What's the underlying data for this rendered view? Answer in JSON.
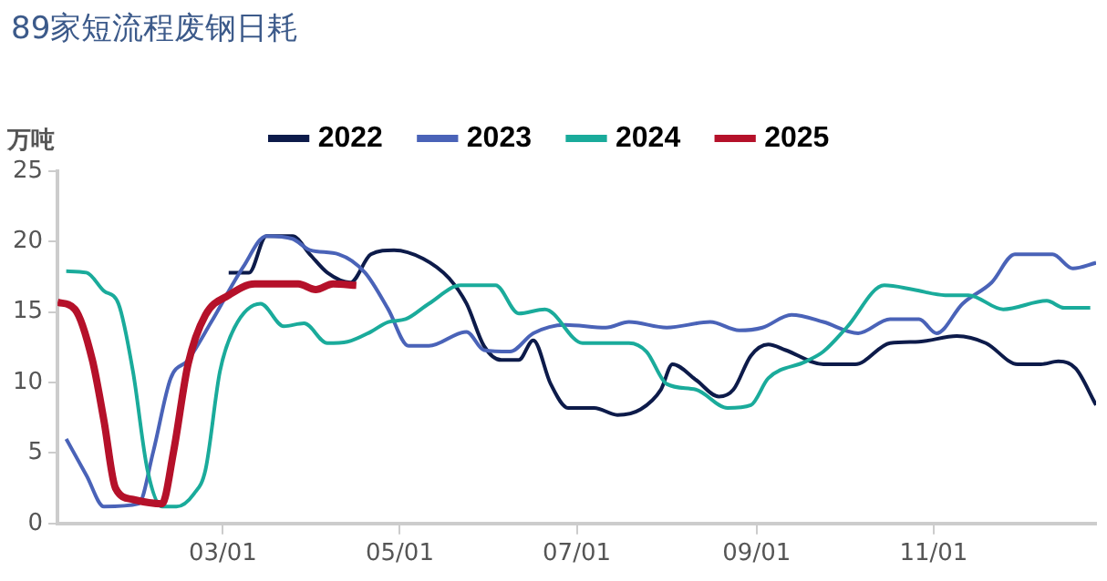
{
  "chart_data": {
    "type": "line",
    "title": "89家短流程废钢日耗",
    "ylabel": "万吨",
    "xlim": [
      "--01-03",
      "--12-27"
    ],
    "xticks": [
      {
        "value": "--03-01",
        "label": "03/01"
      },
      {
        "value": "--05-01",
        "label": "05/01"
      },
      {
        "value": "--07-01",
        "label": "07/01"
      },
      {
        "value": "--09-01",
        "label": "09/01"
      },
      {
        "value": "--11-01",
        "label": "11/01"
      }
    ],
    "ylim": [
      0,
      25
    ],
    "yticks": [
      0,
      5,
      10,
      15,
      20,
      25
    ],
    "grid": false,
    "legend": "top",
    "marker": "none",
    "series": [
      {
        "name": "2022",
        "color": "#0d1b4a",
        "x": [
          "--03-03",
          "--03-10",
          "--03-16",
          "--03-25",
          "--03-31",
          "--04-06",
          "--04-14",
          "--04-21",
          "--04-29",
          "--05-09",
          "--05-18",
          "--05-24",
          "--05-30",
          "--06-05",
          "--06-11",
          "--06-16",
          "--06-22",
          "--06-28",
          "--07-07",
          "--07-15",
          "--07-23",
          "--07-30",
          "--08-03",
          "--08-11",
          "--08-19",
          "--08-24",
          "--08-30",
          "--09-05",
          "--09-11",
          "--09-24",
          "--10-05",
          "--10-17",
          "--10-27",
          "--11-09",
          "--11-19",
          "--11-30",
          "--12-08",
          "--12-14",
          "--12-20",
          "--12-27"
        ],
        "values": [
          17.8,
          17.8,
          20.4,
          20.4,
          19.1,
          17.8,
          17.1,
          19.1,
          19.4,
          18.8,
          17.4,
          15.6,
          12.6,
          11.6,
          11.6,
          13.0,
          9.9,
          8.2,
          8.2,
          7.7,
          8.1,
          9.5,
          11.3,
          10.2,
          9.0,
          9.5,
          11.9,
          12.7,
          12.3,
          11.3,
          11.3,
          12.8,
          12.9,
          13.3,
          12.8,
          11.3,
          11.3,
          11.5,
          11.0,
          8.4
        ]
      },
      {
        "name": "2023",
        "color": "#4a63b8",
        "x": [
          "--01-06",
          "--01-13",
          "--01-19",
          "--01-31",
          "--02-05",
          "--02-11",
          "--02-17",
          "--02-25",
          "--03-08",
          "--03-16",
          "--03-25",
          "--03-31",
          "--04-10",
          "--04-19",
          "--04-27",
          "--05-04",
          "--05-11",
          "--05-24",
          "--05-30",
          "--06-08",
          "--06-16",
          "--06-27",
          "--07-11",
          "--07-19",
          "--08-01",
          "--08-16",
          "--08-26",
          "--09-03",
          "--09-13",
          "--09-24",
          "--10-06",
          "--10-17",
          "--10-27",
          "--11-02",
          "--11-11",
          "--11-21",
          "--11-29",
          "--12-12",
          "--12-19",
          "--12-27"
        ],
        "values": [
          6.0,
          3.4,
          1.2,
          1.4,
          5.1,
          10.3,
          11.6,
          14.3,
          18.2,
          20.4,
          20.2,
          19.4,
          19.1,
          17.8,
          15.2,
          12.6,
          12.6,
          13.6,
          12.3,
          12.2,
          13.5,
          14.1,
          13.9,
          14.3,
          13.9,
          14.3,
          13.7,
          13.9,
          14.8,
          14.3,
          13.5,
          14.5,
          14.5,
          13.5,
          15.6,
          17.1,
          19.1,
          19.1,
          18.1,
          18.5
        ]
      },
      {
        "name": "2024",
        "color": "#1aab9b",
        "x": [
          "--01-06",
          "--01-13",
          "--01-19",
          "--01-24",
          "--01-29",
          "--02-03",
          "--02-08",
          "--02-13",
          "--02-19",
          "--02-23",
          "--02-28",
          "--03-05",
          "--03-14",
          "--03-22",
          "--03-29",
          "--04-06",
          "--04-13",
          "--04-21",
          "--04-27",
          "--05-03",
          "--05-11",
          "--05-22",
          "--06-03",
          "--06-11",
          "--06-20",
          "--07-03",
          "--07-19",
          "--07-25",
          "--08-01",
          "--08-11",
          "--08-22",
          "--08-30",
          "--09-05",
          "--09-18",
          "--09-24",
          "--10-02",
          "--10-15",
          "--10-25",
          "--11-05",
          "--11-13",
          "--11-25",
          "--12-10",
          "--12-16",
          "--12-25"
        ],
        "values": [
          17.9,
          17.8,
          16.5,
          15.6,
          10.8,
          3.8,
          1.2,
          1.2,
          2.1,
          3.8,
          10.8,
          13.9,
          15.6,
          14.0,
          14.2,
          12.8,
          12.9,
          13.6,
          14.3,
          14.5,
          15.6,
          16.9,
          16.9,
          14.9,
          15.2,
          12.8,
          12.8,
          12.2,
          9.9,
          9.5,
          8.2,
          8.4,
          10.3,
          11.5,
          12.2,
          13.9,
          16.9,
          16.6,
          16.2,
          16.2,
          15.2,
          15.8,
          15.3,
          15.3
        ]
      },
      {
        "name": "2025",
        "color": "#b5112a",
        "x": [
          "--01-03",
          "--01-09",
          "--01-15",
          "--01-19",
          "--01-23",
          "--01-29",
          "--02-08",
          "--02-12",
          "--02-17",
          "--02-23",
          "--03-03",
          "--03-12",
          "--03-27",
          "--04-02",
          "--04-08",
          "--04-16"
        ],
        "values": [
          15.7,
          15.2,
          11.6,
          7.3,
          2.5,
          1.7,
          1.4,
          5.1,
          11.3,
          14.8,
          16.2,
          17.0,
          17.0,
          16.6,
          17.0,
          16.9
        ]
      }
    ]
  }
}
